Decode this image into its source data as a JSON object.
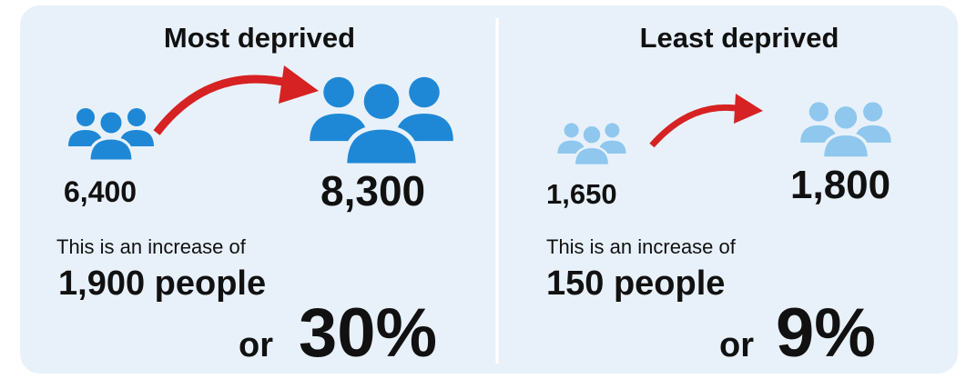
{
  "panels": [
    {
      "title": "Most deprived",
      "from": "6,400",
      "to": "8,300",
      "text": "This is an increase of",
      "increase": "1,900 people",
      "or": "or",
      "percent": "30%"
    },
    {
      "title": "Least deprived",
      "from": "1,650",
      "to": "1,800",
      "text": "This is an increase of",
      "increase": "150 people",
      "or": "or",
      "percent": "9%"
    }
  ]
}
